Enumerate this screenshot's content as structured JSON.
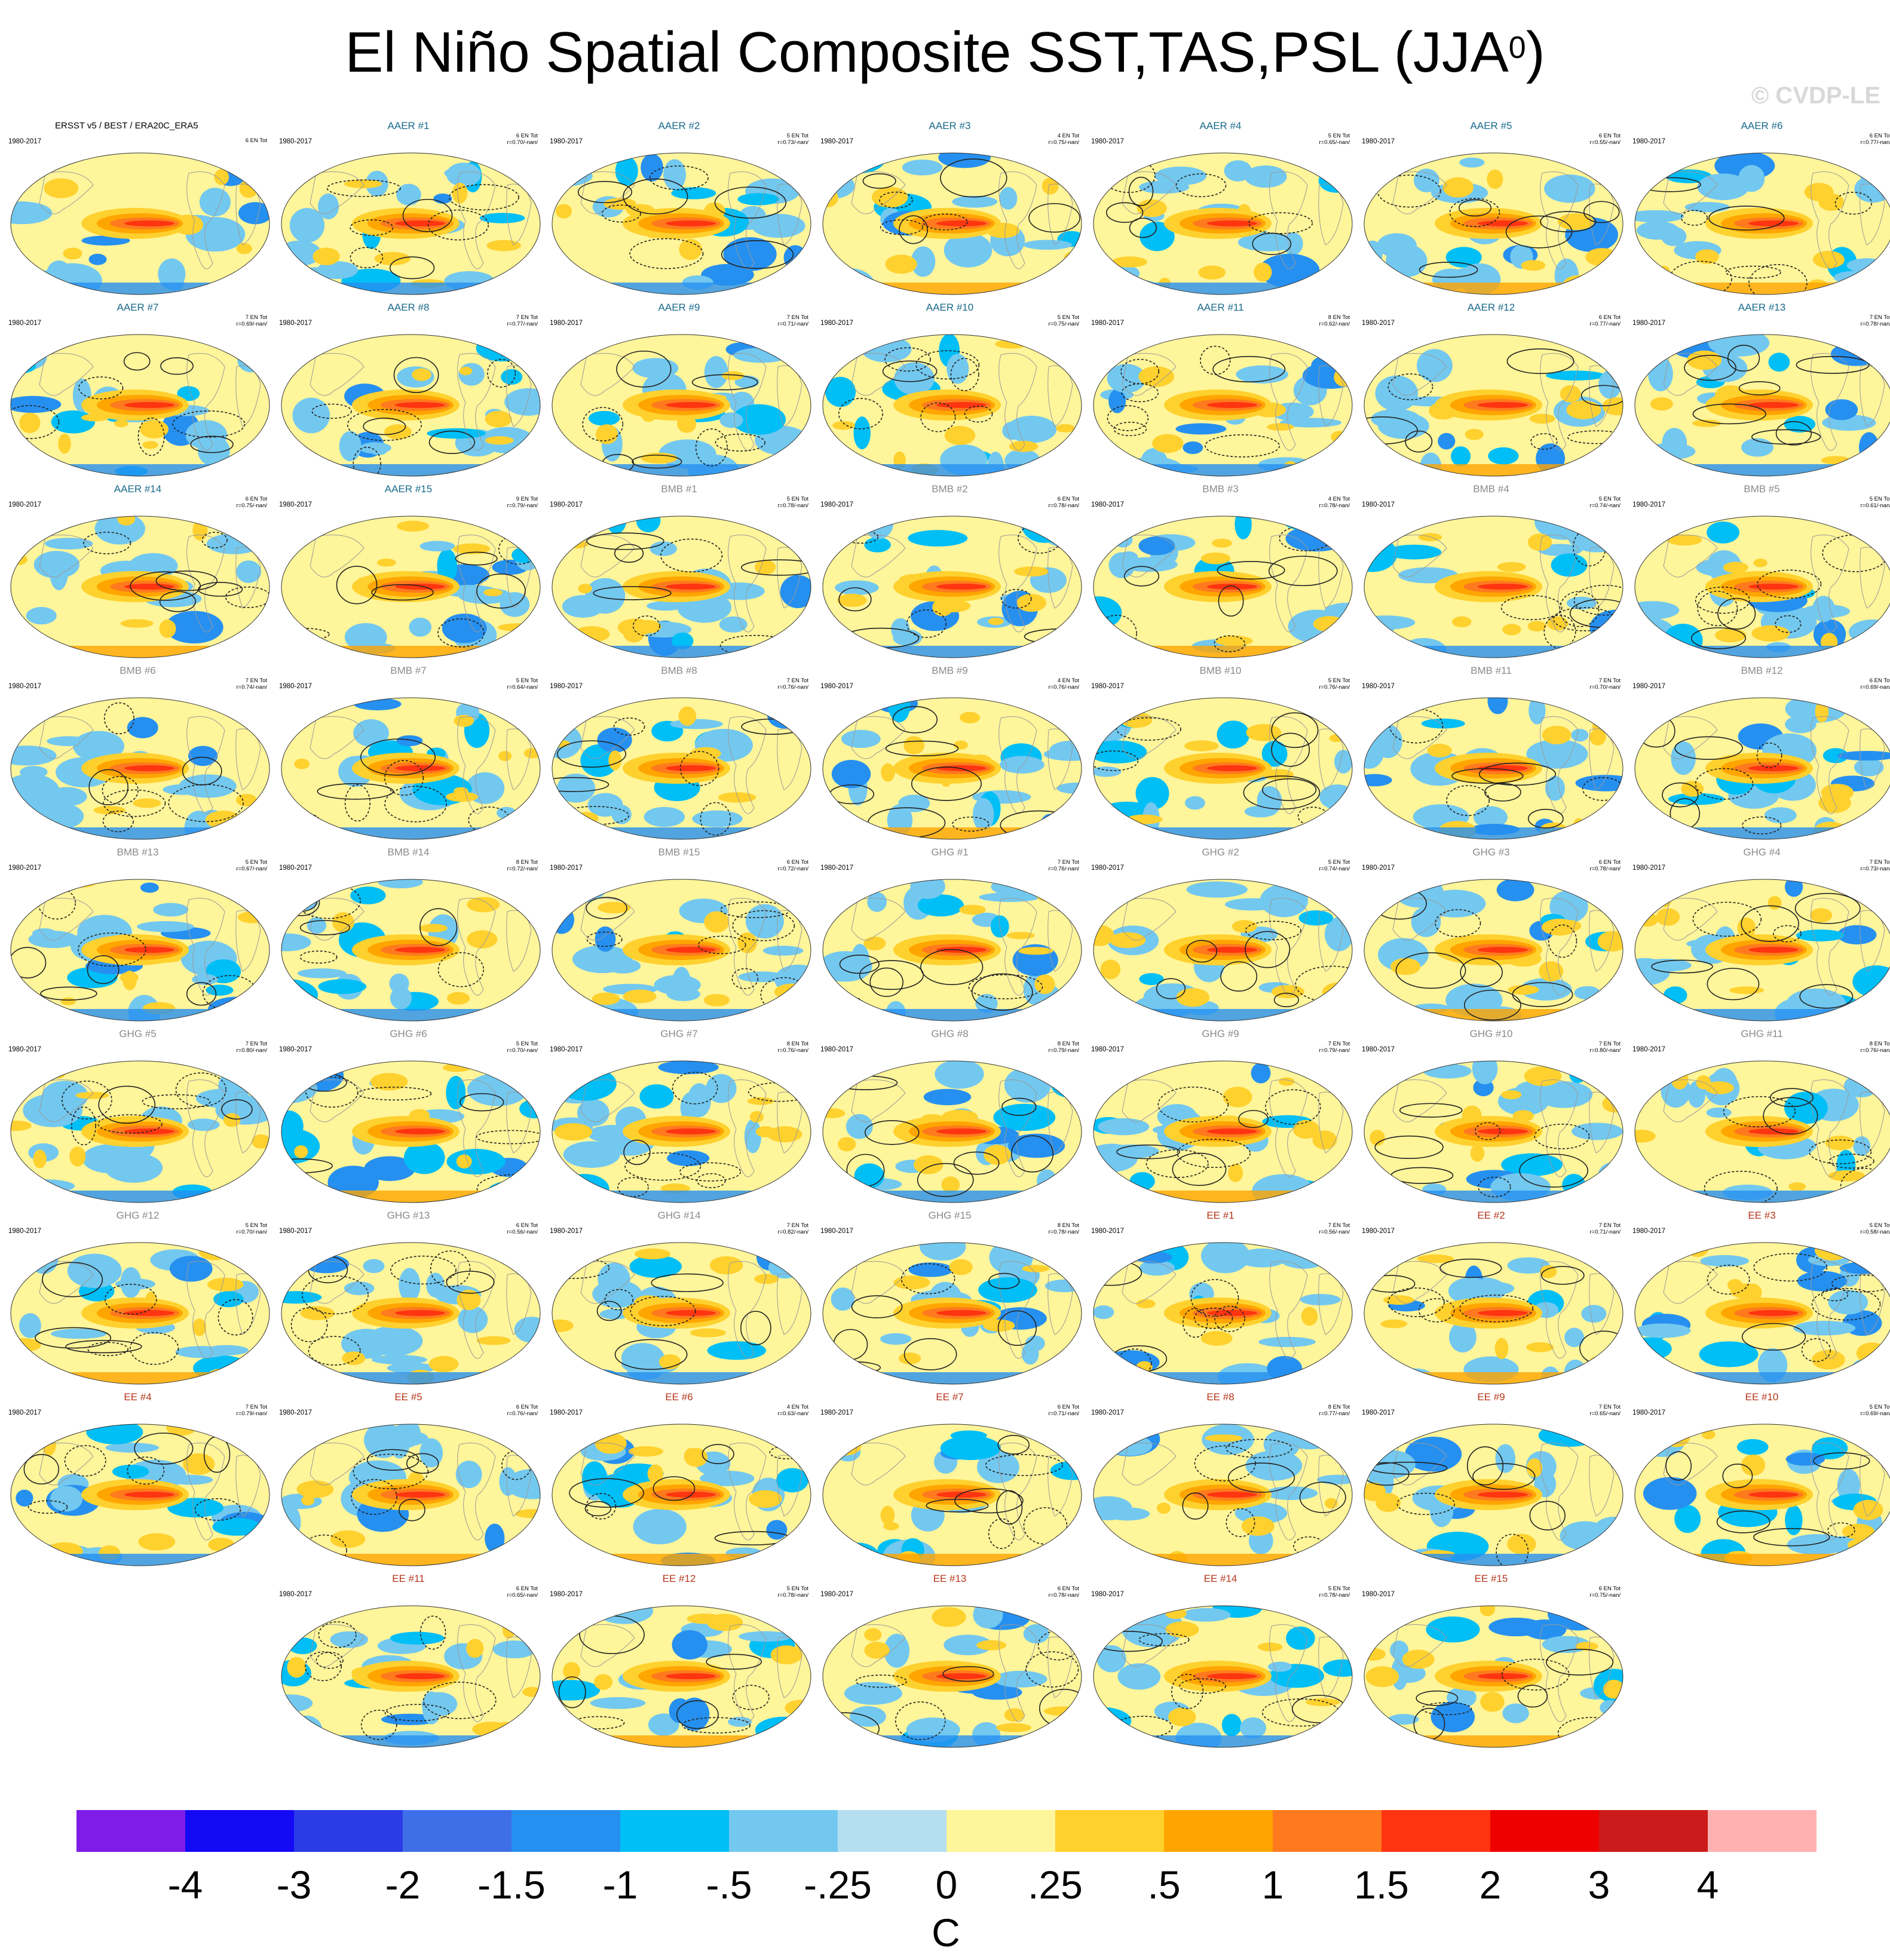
{
  "title_main": "El Niño Spatial Composite SST,TAS,PSL (JJA",
  "title_sup": "0",
  "title_end": ")",
  "credit": "© CVDP-LE",
  "colors": {
    "aer": "#1a6a8a",
    "bmb": "#8a8a8a",
    "ghg": "#8a8a8a",
    "ee": "#b5361b",
    "obs": "#000000"
  },
  "chart_data": {
    "type": "heatmap",
    "title": "El Niño Spatial Composite SST,TAS,PSL (JJA0)",
    "units": "C",
    "colorbar": {
      "ticks": [
        "-4",
        "-3",
        "-2",
        "-1.5",
        "-1",
        "-.5",
        "-.25",
        "0",
        ".25",
        ".5",
        "1",
        "1.5",
        "2",
        "3",
        "4"
      ],
      "colors": [
        "#7f1ce8",
        "#1409f5",
        "#2b3ce6",
        "#3f6fe8",
        "#2690f0",
        "#00bef6",
        "#73c8ef",
        "#b5def0",
        "#fff59a",
        "#ffd12e",
        "#ffa500",
        "#ff7a1e",
        "#ff3410",
        "#ee0000",
        "#cc1b1b",
        "#ffb1b1"
      ]
    },
    "panels": [
      {
        "title": "ERSST v5 / BEST / ERA20C_ERA5",
        "period": "1980-2017",
        "count": "6 EN Tot",
        "corr": "",
        "group": "obs",
        "var": 0
      },
      {
        "title": "AAER #1",
        "period": "1980-2017",
        "count": "6 EN Tot",
        "corr": "r=0.70/-nan/",
        "group": "aer",
        "var": 1
      },
      {
        "title": "AAER #2",
        "period": "1980-2017",
        "count": "5 EN Tot",
        "corr": "r=0.73/-nan/",
        "group": "aer",
        "var": 2
      },
      {
        "title": "AAER #3",
        "period": "1980-2017",
        "count": "4 EN Tot",
        "corr": "r=0.75/-nan/",
        "group": "aer",
        "var": 3
      },
      {
        "title": "AAER #4",
        "period": "1980-2017",
        "count": "5 EN Tot",
        "corr": "r=0.65/-nan/",
        "group": "aer",
        "var": 4
      },
      {
        "title": "AAER #5",
        "period": "1980-2017",
        "count": "6 EN Tot",
        "corr": "r=0.55/-nan/",
        "group": "aer",
        "var": 5
      },
      {
        "title": "AAER #6",
        "period": "1980-2017",
        "count": "6 EN Tot",
        "corr": "r=0.77/-nan/",
        "group": "aer",
        "var": 6
      },
      {
        "title": "AAER #7",
        "period": "1980-2017",
        "count": "7 EN Tot",
        "corr": "r=0.69/-nan/",
        "group": "aer",
        "var": 7
      },
      {
        "title": "AAER #8",
        "period": "1980-2017",
        "count": "7 EN Tot",
        "corr": "r=0.77/-nan/",
        "group": "aer",
        "var": 8
      },
      {
        "title": "AAER #9",
        "period": "1980-2017",
        "count": "7 EN Tot",
        "corr": "r=0.71/-nan/",
        "group": "aer",
        "var": 9
      },
      {
        "title": "AAER #10",
        "period": "1980-2017",
        "count": "5 EN Tot",
        "corr": "r=0.75/-nan/",
        "group": "aer",
        "var": 10
      },
      {
        "title": "AAER #11",
        "period": "1980-2017",
        "count": "8 EN Tot",
        "corr": "r=0.62/-nan/",
        "group": "aer",
        "var": 11
      },
      {
        "title": "AAER #12",
        "period": "1980-2017",
        "count": "6 EN Tot",
        "corr": "r=0.77/-nan/",
        "group": "aer",
        "var": 12
      },
      {
        "title": "AAER #13",
        "period": "1980-2017",
        "count": "7 EN Tot",
        "corr": "r=0.78/-nan/",
        "group": "aer",
        "var": 13
      },
      {
        "title": "AAER #14",
        "period": "1980-2017",
        "count": "6 EN Tot",
        "corr": "r=0.75/-nan/",
        "group": "aer",
        "var": 14
      },
      {
        "title": "AAER #15",
        "period": "1980-2017",
        "count": "9 EN Tot",
        "corr": "r=0.79/-nan/",
        "group": "aer",
        "var": 15
      },
      {
        "title": "BMB #1",
        "period": "1980-2017",
        "count": "5 EN Tot",
        "corr": "r=0.78/-nan/",
        "group": "bmb",
        "var": 16
      },
      {
        "title": "BMB #2",
        "period": "1980-2017",
        "count": "6 EN Tot",
        "corr": "r=0.78/-nan/",
        "group": "bmb",
        "var": 17
      },
      {
        "title": "BMB #3",
        "period": "1980-2017",
        "count": "4 EN Tot",
        "corr": "r=0.78/-nan/",
        "group": "bmb",
        "var": 18
      },
      {
        "title": "BMB #4",
        "period": "1980-2017",
        "count": "5 EN Tot",
        "corr": "r=0.74/-nan/",
        "group": "bmb",
        "var": 19
      },
      {
        "title": "BMB #5",
        "period": "1980-2017",
        "count": "5 EN Tot",
        "corr": "r=0.61/-nan/",
        "group": "bmb",
        "var": 20
      },
      {
        "title": "BMB #6",
        "period": "1980-2017",
        "count": "7 EN Tot",
        "corr": "r=0.74/-nan/",
        "group": "bmb",
        "var": 21
      },
      {
        "title": "BMB #7",
        "period": "1980-2017",
        "count": "5 EN Tot",
        "corr": "r=0.64/-nan/",
        "group": "bmb",
        "var": 22
      },
      {
        "title": "BMB #8",
        "period": "1980-2017",
        "count": "7 EN Tot",
        "corr": "r=0.76/-nan/",
        "group": "bmb",
        "var": 23
      },
      {
        "title": "BMB #9",
        "period": "1980-2017",
        "count": "4 EN Tot",
        "corr": "r=0.76/-nan/",
        "group": "bmb",
        "var": 24
      },
      {
        "title": "BMB #10",
        "period": "1980-2017",
        "count": "5 EN Tot",
        "corr": "r=0.76/-nan/",
        "group": "bmb",
        "var": 25
      },
      {
        "title": "BMB #11",
        "period": "1980-2017",
        "count": "7 EN Tot",
        "corr": "r=0.70/-nan/",
        "group": "bmb",
        "var": 26
      },
      {
        "title": "BMB #12",
        "period": "1980-2017",
        "count": "6 EN Tot",
        "corr": "r=0.69/-nan/",
        "group": "bmb",
        "var": 27
      },
      {
        "title": "BMB #13",
        "period": "1980-2017",
        "count": "5 EN Tot",
        "corr": "r=0.67/-nan/",
        "group": "bmb",
        "var": 28
      },
      {
        "title": "BMB #14",
        "period": "1980-2017",
        "count": "8 EN Tot",
        "corr": "r=0.72/-nan/",
        "group": "bmb",
        "var": 29
      },
      {
        "title": "BMB #15",
        "period": "1980-2017",
        "count": "6 EN Tot",
        "corr": "r=0.72/-nan/",
        "group": "bmb",
        "var": 30
      },
      {
        "title": "GHG #1",
        "period": "1980-2017",
        "count": "7 EN Tot",
        "corr": "r=0.76/-nan/",
        "group": "ghg",
        "var": 31
      },
      {
        "title": "GHG #2",
        "period": "1980-2017",
        "count": "5 EN Tot",
        "corr": "r=0.74/-nan/",
        "group": "ghg",
        "var": 32
      },
      {
        "title": "GHG #3",
        "period": "1980-2017",
        "count": "6 EN Tot",
        "corr": "r=0.78/-nan/",
        "group": "ghg",
        "var": 33
      },
      {
        "title": "GHG #4",
        "period": "1980-2017",
        "count": "7 EN Tot",
        "corr": "r=0.73/-nan/",
        "group": "ghg",
        "var": 34
      },
      {
        "title": "GHG #5",
        "period": "1980-2017",
        "count": "7 EN Tot",
        "corr": "r=0.80/-nan/",
        "group": "ghg",
        "var": 35
      },
      {
        "title": "GHG #6",
        "period": "1980-2017",
        "count": "5 EN Tot",
        "corr": "r=0.70/-nan/",
        "group": "ghg",
        "var": 36
      },
      {
        "title": "GHG #7",
        "period": "1980-2017",
        "count": "8 EN Tot",
        "corr": "r=0.76/-nan/",
        "group": "ghg",
        "var": 37
      },
      {
        "title": "GHG #8",
        "period": "1980-2017",
        "count": "8 EN Tot",
        "corr": "r=0.79/-nan/",
        "group": "ghg",
        "var": 38
      },
      {
        "title": "GHG #9",
        "period": "1980-2017",
        "count": "7 EN Tot",
        "corr": "r=0.79/-nan/",
        "group": "ghg",
        "var": 39
      },
      {
        "title": "GHG #10",
        "period": "1980-2017",
        "count": "7 EN Tot",
        "corr": "r=0.80/-nan/",
        "group": "ghg",
        "var": 40
      },
      {
        "title": "GHG #11",
        "period": "1980-2017",
        "count": "8 EN Tot",
        "corr": "r=0.76/-nan/",
        "group": "ghg",
        "var": 41
      },
      {
        "title": "GHG #12",
        "period": "1980-2017",
        "count": "5 EN Tot",
        "corr": "r=0.70/-nan/",
        "group": "ghg",
        "var": 42
      },
      {
        "title": "GHG #13",
        "period": "1980-2017",
        "count": "6 EN Tot",
        "corr": "r=0.56/-nan/",
        "group": "ghg",
        "var": 43
      },
      {
        "title": "GHG #14",
        "period": "1980-2017",
        "count": "7 EN Tot",
        "corr": "r=0.82/-nan/",
        "group": "ghg",
        "var": 44
      },
      {
        "title": "GHG #15",
        "period": "1980-2017",
        "count": "8 EN Tot",
        "corr": "r=0.78/-nan/",
        "group": "ghg",
        "var": 45
      },
      {
        "title": "EE #1",
        "period": "1980-2017",
        "count": "7 EN Tot",
        "corr": "r=0.56/-nan/",
        "group": "ee",
        "var": 46
      },
      {
        "title": "EE #2",
        "period": "1980-2017",
        "count": "7 EN Tot",
        "corr": "r=0.71/-nan/",
        "group": "ee",
        "var": 47
      },
      {
        "title": "EE #3",
        "period": "1980-2017",
        "count": "5 EN Tot",
        "corr": "r=0.58/-nan/",
        "group": "ee",
        "var": 48
      },
      {
        "title": "EE #4",
        "period": "1980-2017",
        "count": "7 EN Tot",
        "corr": "r=0.79/-nan/",
        "group": "ee",
        "var": 49
      },
      {
        "title": "EE #5",
        "period": "1980-2017",
        "count": "6 EN Tot",
        "corr": "r=0.76/-nan/",
        "group": "ee",
        "var": 50
      },
      {
        "title": "EE #6",
        "period": "1980-2017",
        "count": "4 EN Tot",
        "corr": "r=0.63/-nan/",
        "group": "ee",
        "var": 51
      },
      {
        "title": "EE #7",
        "period": "1980-2017",
        "count": "6 EN Tot",
        "corr": "r=0.71/-nan/",
        "group": "ee",
        "var": 52
      },
      {
        "title": "EE #8",
        "period": "1980-2017",
        "count": "8 EN Tot",
        "corr": "r=0.77/-nan/",
        "group": "ee",
        "var": 53
      },
      {
        "title": "EE #9",
        "period": "1980-2017",
        "count": "7 EN Tot",
        "corr": "r=0.65/-nan/",
        "group": "ee",
        "var": 54
      },
      {
        "title": "EE #10",
        "period": "1980-2017",
        "count": "5 EN Tot",
        "corr": "r=0.69/-nan/",
        "group": "ee",
        "var": 55
      },
      {
        "title": "EE #11",
        "period": "1980-2017",
        "count": "6 EN Tot",
        "corr": "r=0.65/-nan/",
        "group": "ee",
        "var": 56
      },
      {
        "title": "EE #12",
        "period": "1980-2017",
        "count": "5 EN Tot",
        "corr": "r=0.78/-nan/",
        "group": "ee",
        "var": 57
      },
      {
        "title": "EE #13",
        "period": "1980-2017",
        "count": "6 EN Tot",
        "corr": "r=0.78/-nan/",
        "group": "ee",
        "var": 58
      },
      {
        "title": "EE #14",
        "period": "1980-2017",
        "count": "5 EN Tot",
        "corr": "r=0.78/-nan/",
        "group": "ee",
        "var": 59
      },
      {
        "title": "EE #15",
        "period": "1980-2017",
        "count": "6 EN Tot",
        "corr": "r=0.75/-nan/",
        "group": "ee",
        "var": 60
      }
    ]
  }
}
